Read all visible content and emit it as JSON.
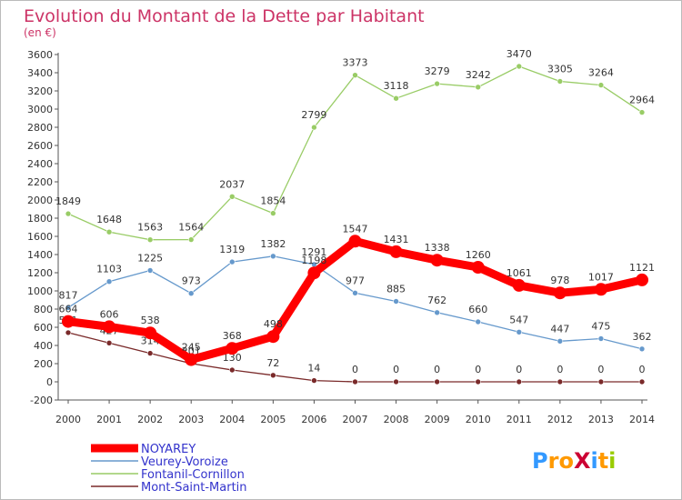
{
  "chart_data": {
    "type": "line",
    "title": "Evolution du Montant de la Dette par Habitant",
    "subtitle": "(en €)",
    "x": [
      "2000",
      "2001",
      "2002",
      "2003",
      "2004",
      "2005",
      "2006",
      "2007",
      "2008",
      "2009",
      "2010",
      "2011",
      "2012",
      "2013",
      "2014"
    ],
    "ylim": [
      -200,
      3600
    ],
    "yticks": [
      -200,
      0,
      200,
      400,
      600,
      800,
      1000,
      1200,
      1400,
      1600,
      1800,
      2000,
      2200,
      2400,
      2600,
      2800,
      3000,
      3200,
      3400,
      3600
    ],
    "grid": false,
    "legend_position": "bottom-left",
    "series": [
      {
        "name": "NOYAREY",
        "color": "#ff0000",
        "values": [
          664,
          606,
          538,
          245,
          368,
          498,
          1198,
          1547,
          1431,
          1338,
          1260,
          1061,
          978,
          1017,
          1121
        ],
        "labels": [
          "664",
          "606",
          "538",
          "245",
          "368",
          "498",
          "1198",
          "1547",
          "1431",
          "1338",
          "1260",
          "1061",
          "978",
          "1017",
          "1121"
        ]
      },
      {
        "name": "Veurey-Voroize",
        "color": "#6699cc",
        "values": [
          817,
          1103,
          1225,
          973,
          1319,
          1382,
          1291,
          977,
          885,
          762,
          660,
          547,
          447,
          475,
          362
        ],
        "labels": [
          "817",
          "1103",
          "1225",
          "973",
          "1319",
          "1382",
          "1291",
          "977",
          "885",
          "762",
          "660",
          "547",
          "447",
          "475",
          "362"
        ]
      },
      {
        "name": "Fontanil-Cornillon",
        "color": "#99cc66",
        "values": [
          1849,
          1648,
          1563,
          1564,
          2037,
          1854,
          2799,
          3373,
          3118,
          3279,
          3242,
          3470,
          3305,
          3264,
          2964
        ],
        "labels": [
          "1849",
          "1648",
          "1563",
          "1564",
          "2037",
          "1854",
          "2799",
          "3373",
          "3118",
          "3279",
          "3242",
          "3470",
          "3305",
          "3264",
          "2964"
        ]
      },
      {
        "name": "Mont-Saint-Martin",
        "color": "#7a2a2a",
        "values": [
          541,
          427,
          314,
          201,
          130,
          72,
          14,
          0,
          0,
          0,
          0,
          0,
          0,
          0,
          0
        ],
        "labels": [
          "541",
          "427",
          "314",
          "201",
          "130",
          "72",
          "14",
          "0",
          "0",
          "0",
          "0",
          "0",
          "0",
          "0",
          "0"
        ]
      }
    ]
  },
  "brand": {
    "logo_text": "ProXiti"
  }
}
